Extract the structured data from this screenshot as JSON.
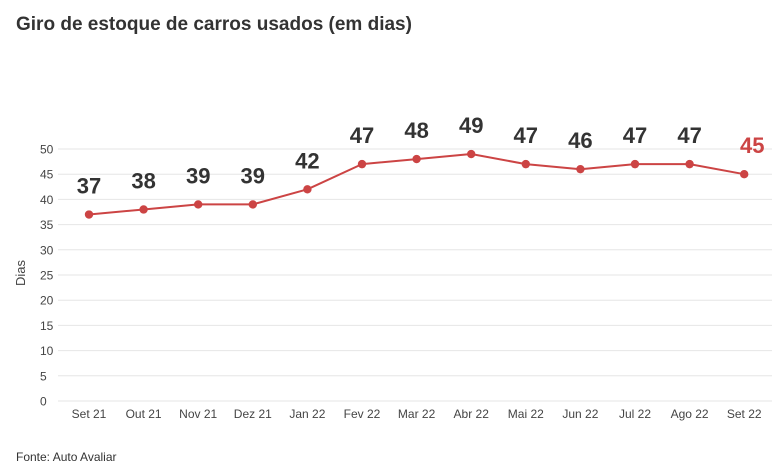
{
  "chart_data": {
    "type": "line",
    "title": "Giro de estoque de carros usados (em dias)",
    "ylabel": "Dias",
    "xlabel": "",
    "categories": [
      "Set 21",
      "Out 21",
      "Nov 21",
      "Dez 21",
      "Jan 22",
      "Fev 22",
      "Mar 22",
      "Abr 22",
      "Mai 22",
      "Jun 22",
      "Jul 22",
      "Ago 22",
      "Set 22"
    ],
    "values": [
      37,
      38,
      39,
      39,
      42,
      47,
      48,
      49,
      47,
      46,
      47,
      47,
      45
    ],
    "data_labels": [
      "37",
      "38",
      "39",
      "39",
      "42",
      "47",
      "48",
      "49",
      "47",
      "46",
      "47",
      "47",
      "45"
    ],
    "ylim": [
      0,
      50
    ],
    "yticks": [
      "0",
      "5",
      "10",
      "15",
      "20",
      "25",
      "30",
      "35",
      "40",
      "45",
      "50"
    ],
    "grid": true,
    "legend": "none",
    "colors": {
      "line": "#cc4444",
      "point": "#cc4444",
      "label": "#333333",
      "highlight_label": "#cc4444",
      "grid": "#e6e6e6"
    },
    "highlight_last": true
  },
  "source": "Fonte: Auto Avaliar"
}
